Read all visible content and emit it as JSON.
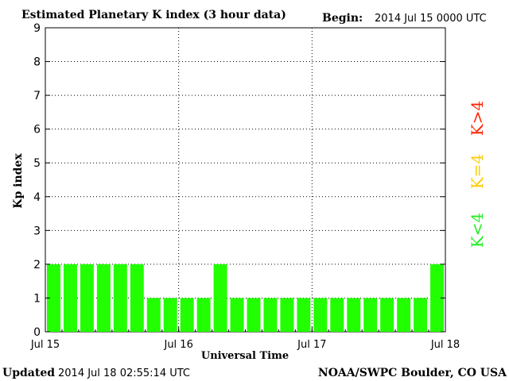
{
  "header": {
    "title": "Estimated Planetary K index (3 hour data)",
    "begin_label": "Begin:",
    "begin_value": "2014 Jul 15 0000 UTC"
  },
  "footer": {
    "updated_label": "Updated",
    "updated_value": "2014 Jul 18 02:55:14 UTC",
    "source": "NOAA/SWPC Boulder, CO USA"
  },
  "legend": {
    "above": {
      "text": "K>4",
      "color": "#ff2200"
    },
    "equal": {
      "text": "K=4",
      "color": "#ffcc00"
    },
    "below": {
      "text": "K<4",
      "color": "#22ee22"
    }
  },
  "chart_data": {
    "type": "bar",
    "xlabel": "Universal Time",
    "ylabel": "Kp index",
    "ylim": [
      0,
      9
    ],
    "yticks": [
      0,
      1,
      2,
      3,
      4,
      5,
      6,
      7,
      8,
      9
    ],
    "xticks": [
      "Jul 15",
      "Jul 16",
      "Jul 17",
      "Jul 18"
    ],
    "interval_hours": 3,
    "bar_color": "#22ff00",
    "values": [
      2,
      2,
      2,
      2,
      2,
      2,
      1,
      1,
      1,
      1,
      2,
      1,
      1,
      1,
      1,
      1,
      1,
      1,
      1,
      1,
      1,
      1,
      1,
      2
    ],
    "grid": "vertical-day and horizontal-integer dotted"
  }
}
